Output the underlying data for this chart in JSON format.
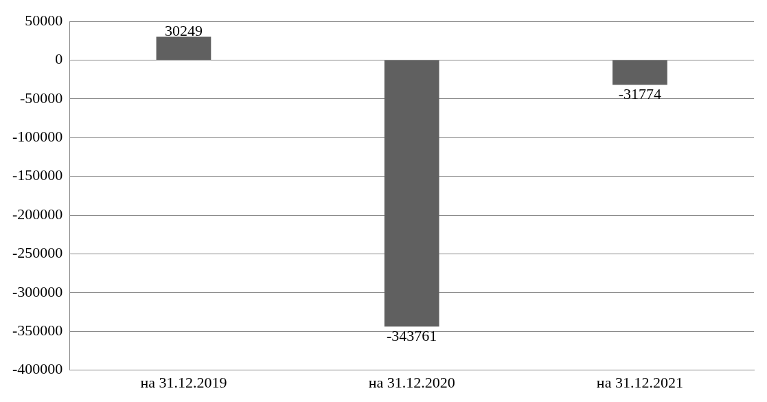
{
  "chart_data": {
    "type": "bar",
    "categories": [
      "на 31.12.2019",
      "на 31.12.2020",
      "на 31.12.2021"
    ],
    "values": [
      30249,
      -343761,
      -31774
    ],
    "color": "#606060",
    "ylim": [
      -400000,
      50000
    ],
    "yticks": [
      -400000,
      -350000,
      -300000,
      -250000,
      -200000,
      -150000,
      -100000,
      -50000,
      0,
      50000
    ],
    "grid": "y",
    "legend": false,
    "data_labels": true
  }
}
